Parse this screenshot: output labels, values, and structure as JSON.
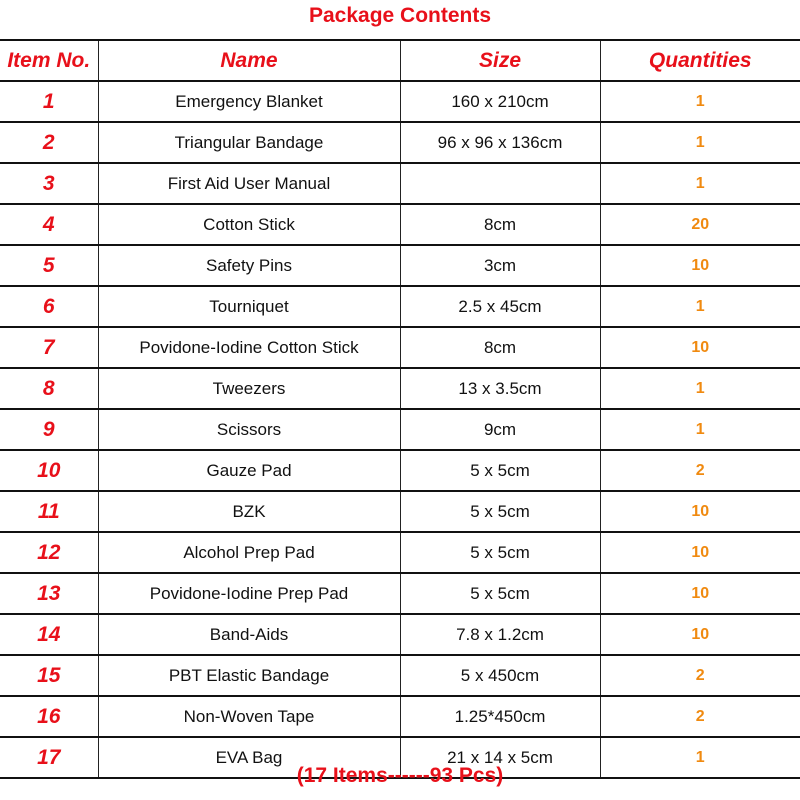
{
  "title": "Package Contents",
  "headers": [
    "Item No.",
    "Name",
    "Size",
    "Quantities"
  ],
  "rows": [
    {
      "no": "1",
      "name": "Emergency Blanket",
      "size": "160 x 210cm",
      "qty": "1"
    },
    {
      "no": "2",
      "name": "Triangular Bandage",
      "size": "96 x 96 x 136cm",
      "qty": "1"
    },
    {
      "no": "3",
      "name": "First Aid User Manual",
      "size": "",
      "qty": "1"
    },
    {
      "no": "4",
      "name": "Cotton Stick",
      "size": "8cm",
      "qty": "20"
    },
    {
      "no": "5",
      "name": "Safety Pins",
      "size": "3cm",
      "qty": "10"
    },
    {
      "no": "6",
      "name": "Tourniquet",
      "size": "2.5 x 45cm",
      "qty": "1"
    },
    {
      "no": "7",
      "name": "Povidone-Iodine Cotton Stick",
      "size": "8cm",
      "qty": "10"
    },
    {
      "no": "8",
      "name": "Tweezers",
      "size": "13 x 3.5cm",
      "qty": "1"
    },
    {
      "no": "9",
      "name": "Scissors",
      "size": "9cm",
      "qty": "1"
    },
    {
      "no": "10",
      "name": "Gauze Pad",
      "size": "5 x 5cm",
      "qty": "2"
    },
    {
      "no": "11",
      "name": "BZK",
      "size": "5 x 5cm",
      "qty": "10"
    },
    {
      "no": "12",
      "name": "Alcohol Prep Pad",
      "size": "5 x 5cm",
      "qty": "10"
    },
    {
      "no": "13",
      "name": "Povidone-Iodine Prep Pad",
      "size": "5 x 5cm",
      "qty": "10"
    },
    {
      "no": "14",
      "name": "Band-Aids",
      "size": "7.8 x 1.2cm",
      "qty": "10"
    },
    {
      "no": "15",
      "name": "PBT Elastic Bandage",
      "size": "5 x 450cm",
      "qty": "2"
    },
    {
      "no": "16",
      "name": "Non-Woven Tape",
      "size": "1.25*450cm",
      "qty": "2"
    },
    {
      "no": "17",
      "name": "EVA Bag",
      "size": "21 x 14 x 5cm",
      "qty": "1"
    }
  ],
  "footer": "(17 Items------93 Pcs)",
  "colors": {
    "red": "#e8101a",
    "orange": "#f08a10"
  }
}
